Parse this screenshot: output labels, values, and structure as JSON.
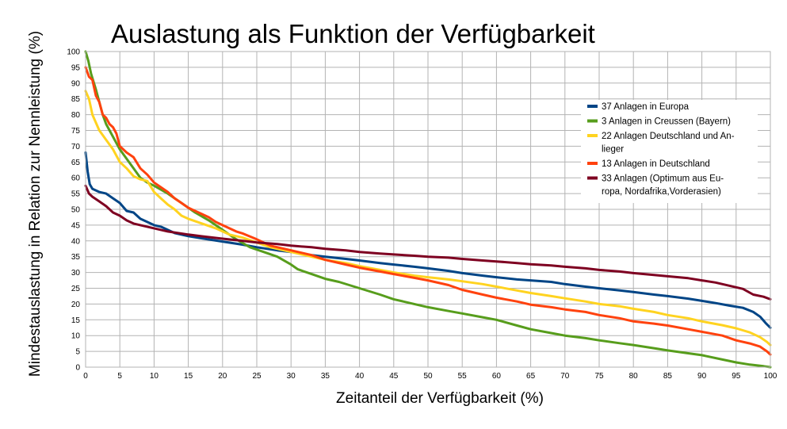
{
  "chart_data": {
    "type": "line",
    "title": "Auslastung als Funktion der Verfügbarkeit",
    "xlabel": "Zeitanteil der Verfügbarkeit (%)",
    "ylabel": "Mindestauslastung in Relation zur Nennleistung (%)",
    "xlim": [
      0,
      100
    ],
    "ylim": [
      0,
      100
    ],
    "x_ticks": [
      "0",
      "5",
      "10",
      "15",
      "20",
      "25",
      "30",
      "35",
      "40",
      "45",
      "50",
      "55",
      "60",
      "65",
      "70",
      "75",
      "80",
      "85",
      "90",
      "95",
      "100"
    ],
    "y_ticks": [
      "0",
      "5",
      "10",
      "15",
      "20",
      "25",
      "30",
      "35",
      "40",
      "45",
      "50",
      "55",
      "60",
      "65",
      "70",
      "75",
      "80",
      "85",
      "90",
      "95",
      "100"
    ],
    "grid": true,
    "legend_position": "top-right",
    "series": [
      {
        "name": "37 Anlagen in Europa",
        "color": "#004586",
        "points": [
          [
            0,
            68
          ],
          [
            0.3,
            62
          ],
          [
            0.6,
            58
          ],
          [
            1,
            56.5
          ],
          [
            2,
            55.5
          ],
          [
            3,
            55
          ],
          [
            4,
            53.5
          ],
          [
            5,
            52
          ],
          [
            6,
            49.5
          ],
          [
            7,
            49
          ],
          [
            8,
            47
          ],
          [
            9,
            46
          ],
          [
            10,
            45
          ],
          [
            11,
            44.5
          ],
          [
            12,
            43.5
          ],
          [
            13,
            42.5
          ],
          [
            15,
            41.5
          ],
          [
            17,
            40.8
          ],
          [
            20,
            39.8
          ],
          [
            23,
            38.8
          ],
          [
            25,
            38
          ],
          [
            28,
            37
          ],
          [
            30,
            36.5
          ],
          [
            33,
            35.5
          ],
          [
            35,
            35
          ],
          [
            38,
            34.3
          ],
          [
            40,
            33.8
          ],
          [
            43,
            33
          ],
          [
            45,
            32.5
          ],
          [
            48,
            31.8
          ],
          [
            50,
            31.3
          ],
          [
            53,
            30.5
          ],
          [
            55,
            29.8
          ],
          [
            58,
            29
          ],
          [
            60,
            28.5
          ],
          [
            63,
            27.8
          ],
          [
            65,
            27.5
          ],
          [
            68,
            27
          ],
          [
            70,
            26.3
          ],
          [
            73,
            25.5
          ],
          [
            75,
            25
          ],
          [
            78,
            24.3
          ],
          [
            80,
            23.8
          ],
          [
            83,
            23
          ],
          [
            85,
            22.5
          ],
          [
            88,
            21.7
          ],
          [
            90,
            21
          ],
          [
            92,
            20.3
          ],
          [
            94,
            19.5
          ],
          [
            96,
            18.8
          ],
          [
            97.5,
            17.5
          ],
          [
            98.5,
            16
          ],
          [
            99.3,
            14
          ],
          [
            100,
            12.5
          ]
        ]
      },
      {
        "name": "3 Anlagen in Creussen (Bayern)",
        "color": "#579d1c",
        "points": [
          [
            0,
            100
          ],
          [
            0.4,
            97
          ],
          [
            0.8,
            93
          ],
          [
            1.5,
            88
          ],
          [
            2,
            84
          ],
          [
            2.5,
            80
          ],
          [
            3,
            77
          ],
          [
            4,
            73
          ],
          [
            5,
            69
          ],
          [
            6,
            66
          ],
          [
            7,
            63
          ],
          [
            8,
            60
          ],
          [
            9,
            58.5
          ],
          [
            10,
            57.5
          ],
          [
            12,
            55
          ],
          [
            14,
            52
          ],
          [
            16,
            49
          ],
          [
            18,
            46.5
          ],
          [
            20,
            43.5
          ],
          [
            22,
            40.5
          ],
          [
            24,
            38
          ],
          [
            26,
            36.5
          ],
          [
            28,
            35
          ],
          [
            30,
            32.5
          ],
          [
            31,
            31
          ],
          [
            33,
            29.5
          ],
          [
            35,
            28
          ],
          [
            37,
            27
          ],
          [
            40,
            25
          ],
          [
            43,
            23
          ],
          [
            45,
            21.5
          ],
          [
            48,
            20
          ],
          [
            50,
            19
          ],
          [
            53,
            17.8
          ],
          [
            55,
            17
          ],
          [
            58,
            15.8
          ],
          [
            60,
            15
          ],
          [
            63,
            13.2
          ],
          [
            65,
            12
          ],
          [
            68,
            10.8
          ],
          [
            70,
            10
          ],
          [
            73,
            9.2
          ],
          [
            75,
            8.5
          ],
          [
            78,
            7.6
          ],
          [
            80,
            7
          ],
          [
            83,
            6
          ],
          [
            85,
            5.3
          ],
          [
            88,
            4.4
          ],
          [
            90,
            3.8
          ],
          [
            93,
            2.4
          ],
          [
            95,
            1.5
          ],
          [
            97,
            0.8
          ],
          [
            99,
            0.3
          ],
          [
            100,
            0
          ]
        ]
      },
      {
        "name": "22 Anlagen Deutschland und Anlieger",
        "color": "#ffd320",
        "points": [
          [
            0,
            87.5
          ],
          [
            0.5,
            85
          ],
          [
            1,
            80
          ],
          [
            2,
            75
          ],
          [
            3,
            72
          ],
          [
            4,
            69
          ],
          [
            5,
            65
          ],
          [
            6,
            63
          ],
          [
            7,
            60.5
          ],
          [
            8,
            59.5
          ],
          [
            9,
            59
          ],
          [
            10,
            55.5
          ],
          [
            11,
            53.5
          ],
          [
            12,
            51.5
          ],
          [
            13,
            50
          ],
          [
            14,
            48
          ],
          [
            15,
            47
          ],
          [
            17,
            45.5
          ],
          [
            19,
            44
          ],
          [
            21,
            42
          ],
          [
            23,
            41
          ],
          [
            25,
            39.5
          ],
          [
            27,
            38
          ],
          [
            30,
            36.5
          ],
          [
            33,
            35
          ],
          [
            35,
            34
          ],
          [
            38,
            33
          ],
          [
            40,
            32
          ],
          [
            43,
            30.8
          ],
          [
            45,
            30
          ],
          [
            48,
            29
          ],
          [
            50,
            28.5
          ],
          [
            53,
            27.8
          ],
          [
            55,
            27.2
          ],
          [
            58,
            26.3
          ],
          [
            60,
            25.5
          ],
          [
            63,
            24.3
          ],
          [
            65,
            23.5
          ],
          [
            68,
            22.5
          ],
          [
            70,
            21.8
          ],
          [
            73,
            20.8
          ],
          [
            75,
            20
          ],
          [
            78,
            19.3
          ],
          [
            80,
            18.5
          ],
          [
            83,
            17.5
          ],
          [
            85,
            16.5
          ],
          [
            88,
            15.5
          ],
          [
            90,
            14.5
          ],
          [
            93,
            13.3
          ],
          [
            95,
            12.3
          ],
          [
            97,
            11
          ],
          [
            98.5,
            9.5
          ],
          [
            99.5,
            8
          ],
          [
            100,
            7
          ]
        ]
      },
      {
        "name": "13 Anlagen in Deutschland",
        "color": "#ff420e",
        "points": [
          [
            0,
            95
          ],
          [
            0.5,
            92
          ],
          [
            1,
            91
          ],
          [
            1.5,
            86
          ],
          [
            2,
            84
          ],
          [
            2.5,
            80
          ],
          [
            3,
            79
          ],
          [
            3.5,
            77
          ],
          [
            4,
            76
          ],
          [
            4.5,
            74
          ],
          [
            5,
            70
          ],
          [
            6,
            68
          ],
          [
            7,
            66.5
          ],
          [
            8,
            63
          ],
          [
            9,
            61
          ],
          [
            10,
            58.5
          ],
          [
            11,
            57
          ],
          [
            12,
            55.5
          ],
          [
            13,
            53.5
          ],
          [
            14,
            52
          ],
          [
            15,
            50.5
          ],
          [
            16,
            49.5
          ],
          [
            17,
            48.5
          ],
          [
            18,
            47.5
          ],
          [
            19,
            46
          ],
          [
            20,
            45
          ],
          [
            21,
            44
          ],
          [
            22,
            43
          ],
          [
            23,
            42.3
          ],
          [
            25,
            40.5
          ],
          [
            27,
            38.5
          ],
          [
            30,
            37
          ],
          [
            33,
            35.5
          ],
          [
            35,
            34
          ],
          [
            38,
            32.5
          ],
          [
            40,
            31.5
          ],
          [
            43,
            30.3
          ],
          [
            45,
            29.5
          ],
          [
            48,
            28.3
          ],
          [
            50,
            27.5
          ],
          [
            53,
            26
          ],
          [
            55,
            24.5
          ],
          [
            58,
            23
          ],
          [
            60,
            22
          ],
          [
            63,
            20.8
          ],
          [
            65,
            19.8
          ],
          [
            68,
            19
          ],
          [
            70,
            18.3
          ],
          [
            73,
            17.5
          ],
          [
            75,
            16.5
          ],
          [
            78,
            15.5
          ],
          [
            80,
            14.5
          ],
          [
            83,
            13.8
          ],
          [
            85,
            13.2
          ],
          [
            88,
            12
          ],
          [
            90,
            11.2
          ],
          [
            93,
            10
          ],
          [
            95,
            8.5
          ],
          [
            97,
            7.5
          ],
          [
            98.5,
            6.5
          ],
          [
            99.5,
            5
          ],
          [
            100,
            4
          ]
        ]
      },
      {
        "name": "33 Anlagen (Optimum aus Europa, Nordafrika,Vorderasien)",
        "color": "#7e0021",
        "points": [
          [
            0,
            57.5
          ],
          [
            0.5,
            55
          ],
          [
            1,
            54
          ],
          [
            2,
            52.5
          ],
          [
            3,
            51
          ],
          [
            4,
            49
          ],
          [
            5,
            48
          ],
          [
            6,
            46.5
          ],
          [
            7,
            45.5
          ],
          [
            8,
            45
          ],
          [
            10,
            44
          ],
          [
            12,
            43
          ],
          [
            15,
            42
          ],
          [
            18,
            41.2
          ],
          [
            20,
            40.7
          ],
          [
            23,
            40
          ],
          [
            25,
            39.5
          ],
          [
            28,
            39
          ],
          [
            30,
            38.5
          ],
          [
            33,
            38
          ],
          [
            35,
            37.5
          ],
          [
            38,
            37
          ],
          [
            40,
            36.5
          ],
          [
            43,
            36
          ],
          [
            45,
            35.7
          ],
          [
            48,
            35.3
          ],
          [
            50,
            35
          ],
          [
            53,
            34.7
          ],
          [
            55,
            34.3
          ],
          [
            58,
            33.8
          ],
          [
            60,
            33.5
          ],
          [
            63,
            33
          ],
          [
            65,
            32.6
          ],
          [
            68,
            32.2
          ],
          [
            70,
            31.8
          ],
          [
            73,
            31.3
          ],
          [
            75,
            30.8
          ],
          [
            78,
            30.3
          ],
          [
            80,
            29.8
          ],
          [
            83,
            29.2
          ],
          [
            85,
            28.8
          ],
          [
            88,
            28.2
          ],
          [
            90,
            27.5
          ],
          [
            92,
            26.8
          ],
          [
            94,
            25.8
          ],
          [
            96,
            24.8
          ],
          [
            97.5,
            23
          ],
          [
            99,
            22.3
          ],
          [
            100,
            21.5
          ]
        ]
      }
    ]
  }
}
